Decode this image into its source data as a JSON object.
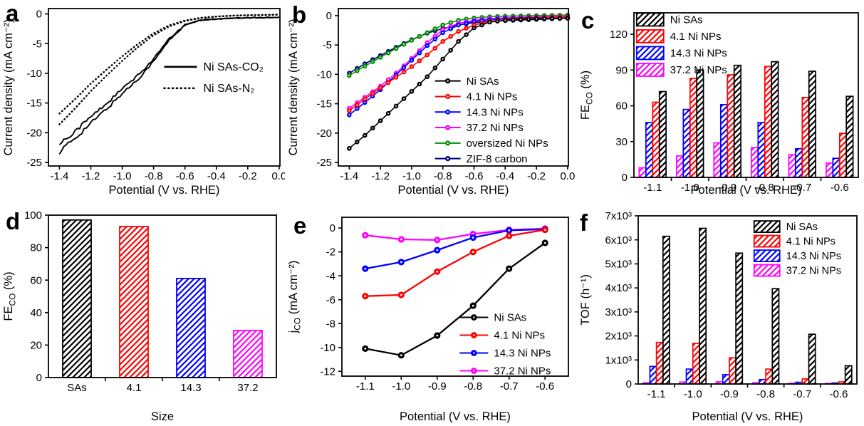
{
  "figure": {
    "background": "#ffffff"
  },
  "colors": {
    "black": "#000000",
    "red": "#ff0000",
    "blue": "#0000ff",
    "magenta": "#ff00ff",
    "green": "#008f00",
    "navy": "#000080"
  },
  "chart_data": [
    {
      "panel_label": "a",
      "type": "line",
      "xlabel": "Potential (V vs. RHE)",
      "ylabel": "Current density (mA cm⁻²)",
      "xlim": [
        -1.47,
        0.005
      ],
      "ylim": [
        -25.6,
        0.9
      ],
      "xticks": [
        -1.4,
        -1.2,
        -1.0,
        -0.8,
        -0.6,
        -0.4,
        -0.2,
        0.0
      ],
      "xtick_labels": [
        "-1.4",
        "-1.2",
        "-1.0",
        "-0.8",
        "-0.6",
        "-0.4",
        "-0.2",
        "0.0"
      ],
      "yticks": [
        0,
        -5,
        -10,
        -15,
        -20,
        -25
      ],
      "ytick_labels": [
        "0",
        "-5",
        "-10",
        "-15",
        "-20",
        "-25"
      ],
      "x": [
        -1.4,
        -1.3,
        -1.2,
        -1.1,
        -1.0,
        -0.9,
        -0.8,
        -0.7,
        -0.6,
        -0.5,
        -0.4,
        -0.3,
        -0.2,
        -0.1,
        0.0
      ],
      "series": [
        {
          "name": "Ni SAs-CO₂",
          "color": "#000000",
          "style": "solid",
          "y": [
            -23.2,
            -20.9,
            -18.4,
            -16.0,
            -13.4,
            -11.0,
            -8.0,
            -4.4,
            -1.9,
            -1.05,
            -0.85,
            -0.75,
            -0.65,
            -0.6,
            -0.55
          ]
        },
        {
          "name": "Ni SAs-N₂",
          "color": "#000000",
          "style": "dotted",
          "y": [
            -18.6,
            -15.9,
            -13.0,
            -10.4,
            -7.9,
            -5.6,
            -3.6,
            -2.1,
            -1.2,
            -0.7,
            -0.45,
            -0.3,
            -0.22,
            -0.18,
            -0.12
          ]
        }
      ]
    },
    {
      "panel_label": "b",
      "type": "scatter-line",
      "dense_markers": true,
      "xlabel": "Potential (V vs. RHE)",
      "ylabel": "Current density (mA cm⁻²)",
      "xlim": [
        -1.47,
        0.005
      ],
      "ylim": [
        -25.6,
        1.2
      ],
      "xticks": [
        -1.4,
        -1.2,
        -1.0,
        -0.8,
        -0.6,
        -0.4,
        -0.2,
        0.0
      ],
      "xtick_labels": [
        "-1.4",
        "-1.2",
        "-1.0",
        "-0.8",
        "-0.6",
        "-0.4",
        "-0.2",
        "0.0"
      ],
      "yticks": [
        0,
        -5,
        -10,
        -15,
        -20,
        -25
      ],
      "ytick_labels": [
        "0",
        "-5",
        "-10",
        "-15",
        "-20",
        "-25"
      ],
      "x": [
        -1.4,
        -1.3,
        -1.2,
        -1.1,
        -1.0,
        -0.9,
        -0.8,
        -0.7,
        -0.6,
        -0.5,
        -0.4,
        -0.3,
        -0.2,
        -0.1,
        0.0
      ],
      "series": [
        {
          "name": "Ni SAs",
          "color": "#000000",
          "y": [
            -22.6,
            -20.4,
            -17.9,
            -15.4,
            -12.9,
            -10.4,
            -7.4,
            -4.4,
            -2.1,
            -1.1,
            -0.8,
            -0.65,
            -0.55,
            -0.5,
            -0.45
          ]
        },
        {
          "name": "4.1 Ni NPs",
          "color": "#ff0000",
          "y": [
            -16.2,
            -14.2,
            -12.3,
            -10.5,
            -8.7,
            -6.7,
            -4.4,
            -2.7,
            -1.6,
            -1.0,
            -0.7,
            -0.5,
            -0.4,
            -0.3,
            -0.25
          ]
        },
        {
          "name": "14.3 Ni NPs",
          "color": "#0000ff",
          "y": [
            -16.9,
            -14.8,
            -12.6,
            -10.1,
            -7.6,
            -5.1,
            -2.9,
            -1.6,
            -1.0,
            -0.7,
            -0.5,
            -0.4,
            -0.3,
            -0.25,
            -0.2
          ]
        },
        {
          "name": "37.2 Ni NPs",
          "color": "#ff00ff",
          "y": [
            -15.8,
            -13.9,
            -12.0,
            -9.8,
            -7.3,
            -4.6,
            -2.4,
            -1.3,
            -0.8,
            -0.5,
            -0.4,
            -0.3,
            -0.25,
            -0.2,
            -0.15
          ]
        },
        {
          "name": "oversized Ni NPs",
          "color": "#008f00",
          "y": [
            -10.2,
            -8.6,
            -7.1,
            -5.6,
            -4.2,
            -2.9,
            -1.6,
            -0.8,
            -0.4,
            -0.2,
            -0.1,
            -0.05,
            0.0,
            0.05,
            0.1
          ]
        },
        {
          "name": "ZIF-8 carbon",
          "color": "#000080",
          "y": [
            -9.8,
            -8.2,
            -6.8,
            -5.4,
            -4.1,
            -3.0,
            -2.2,
            -1.6,
            -1.2,
            -1.0,
            -0.85,
            -0.75,
            -0.65,
            -0.55,
            -0.45
          ]
        }
      ]
    },
    {
      "panel_label": "c",
      "type": "bar-grouped",
      "xlabel": "Potential (V vs. RHE)",
      "ylabel": "FE~CO~ (%)",
      "categories": [
        "-1.1",
        "-1.0",
        "-0.9",
        "-0.8",
        "-0.7",
        "-0.6"
      ],
      "ylim": [
        0,
        138
      ],
      "yticks": [
        0,
        30,
        60,
        90,
        120
      ],
      "ytick_labels": [
        "0",
        "30",
        "60",
        "90",
        "120"
      ],
      "draw_order": [
        3,
        2,
        1,
        0
      ],
      "series": [
        {
          "name": "Ni SAs",
          "color": "#000000",
          "values": [
            72,
            90,
            94,
            97,
            89,
            68
          ]
        },
        {
          "name": "4.1 Ni NPs",
          "color": "#ff0000",
          "values": [
            63,
            83,
            86,
            93,
            67,
            37
          ]
        },
        {
          "name": "14.3 Ni NPs",
          "color": "#0000ff",
          "values": [
            46,
            57,
            61,
            46,
            24,
            16
          ]
        },
        {
          "name": "37.2 Ni NPs",
          "color": "#ff00ff",
          "values": [
            8,
            18,
            29,
            25,
            19,
            12
          ]
        }
      ]
    },
    {
      "panel_label": "d",
      "type": "bar-single",
      "xlabel": "Size",
      "ylabel": "FE~CO~ (%)",
      "ylim": [
        0,
        100
      ],
      "yticks": [
        0,
        20,
        40,
        60,
        80,
        100
      ],
      "ytick_labels": [
        "0",
        "20",
        "40",
        "60",
        "80",
        "100"
      ],
      "bars": [
        {
          "label": "SAs",
          "value": 97,
          "color": "#000000"
        },
        {
          "label": "4.1",
          "value": 93,
          "color": "#ff0000"
        },
        {
          "label": "14.3",
          "value": 61,
          "color": "#0000ff"
        },
        {
          "label": "37.2",
          "value": 29,
          "color": "#ff00ff"
        }
      ]
    },
    {
      "panel_label": "e",
      "type": "scatter-line",
      "dense_markers": false,
      "xlabel": "Potential (V vs. RHE)",
      "ylabel": "j~CO~ (mA cm⁻²)",
      "xlim": [
        -1.165,
        -0.535
      ],
      "ylim": [
        -12.4,
        0.9
      ],
      "xticks": [
        -1.1,
        -1.0,
        -0.9,
        -0.8,
        -0.7,
        -0.6
      ],
      "xtick_labels": [
        "-1.1",
        "-1.0",
        "-0.9",
        "-0.8",
        "-0.7",
        "-0.6"
      ],
      "yticks": [
        0,
        -2,
        -4,
        -6,
        -8,
        -10,
        -12
      ],
      "ytick_labels": [
        "0",
        "-2",
        "-4",
        "-6",
        "-8",
        "-10",
        "-12"
      ],
      "x": [
        -1.1,
        -1.0,
        -0.9,
        -0.8,
        -0.7,
        -0.6
      ],
      "series": [
        {
          "name": "Ni SAs",
          "color": "#000000",
          "y": [
            -10.1,
            -10.65,
            -9.0,
            -6.5,
            -3.4,
            -1.25
          ]
        },
        {
          "name": "4.1 Ni NPs",
          "color": "#ff0000",
          "y": [
            -5.7,
            -5.6,
            -3.65,
            -2.0,
            -0.65,
            -0.15
          ]
        },
        {
          "name": "14.3 Ni NPs",
          "color": "#0000ff",
          "y": [
            -3.4,
            -2.85,
            -1.85,
            -0.8,
            -0.2,
            -0.1
          ]
        },
        {
          "name": "37.2 Ni NPs",
          "color": "#ff00ff",
          "y": [
            -0.6,
            -0.95,
            -1.0,
            -0.5,
            -0.15,
            -0.05
          ]
        }
      ]
    },
    {
      "panel_label": "f",
      "type": "bar-grouped",
      "xlabel": "Potential (V vs. RHE)",
      "ylabel": "TOF (h⁻¹)",
      "categories": [
        "-1.1",
        "-1.0",
        "-0.9",
        "-0.8",
        "-0.7",
        "-0.6"
      ],
      "ylim": [
        0,
        7000
      ],
      "yticks": [
        0,
        1000,
        2000,
        3000,
        4000,
        5000,
        6000,
        7000
      ],
      "ytick_labels": [
        "0",
        "1x10³",
        "2x10³",
        "3x10³",
        "4x10³",
        "5x10³",
        "6x10³",
        "7x10³"
      ],
      "draw_order": [
        3,
        2,
        1,
        0
      ],
      "series": [
        {
          "name": "Ni SAs",
          "color": "#000000",
          "values": [
            6150,
            6480,
            5450,
            3970,
            2070,
            760
          ]
        },
        {
          "name": "4.1 Ni NPs",
          "color": "#ff0000",
          "values": [
            1730,
            1690,
            1090,
            620,
            210,
            90
          ]
        },
        {
          "name": "14.3 Ni NPs",
          "color": "#0000ff",
          "values": [
            730,
            620,
            390,
            180,
            70,
            40
          ]
        },
        {
          "name": "37.2 Ni NPs",
          "color": "#ff00ff",
          "values": [
            50,
            80,
            90,
            50,
            30,
            20
          ]
        }
      ]
    }
  ]
}
